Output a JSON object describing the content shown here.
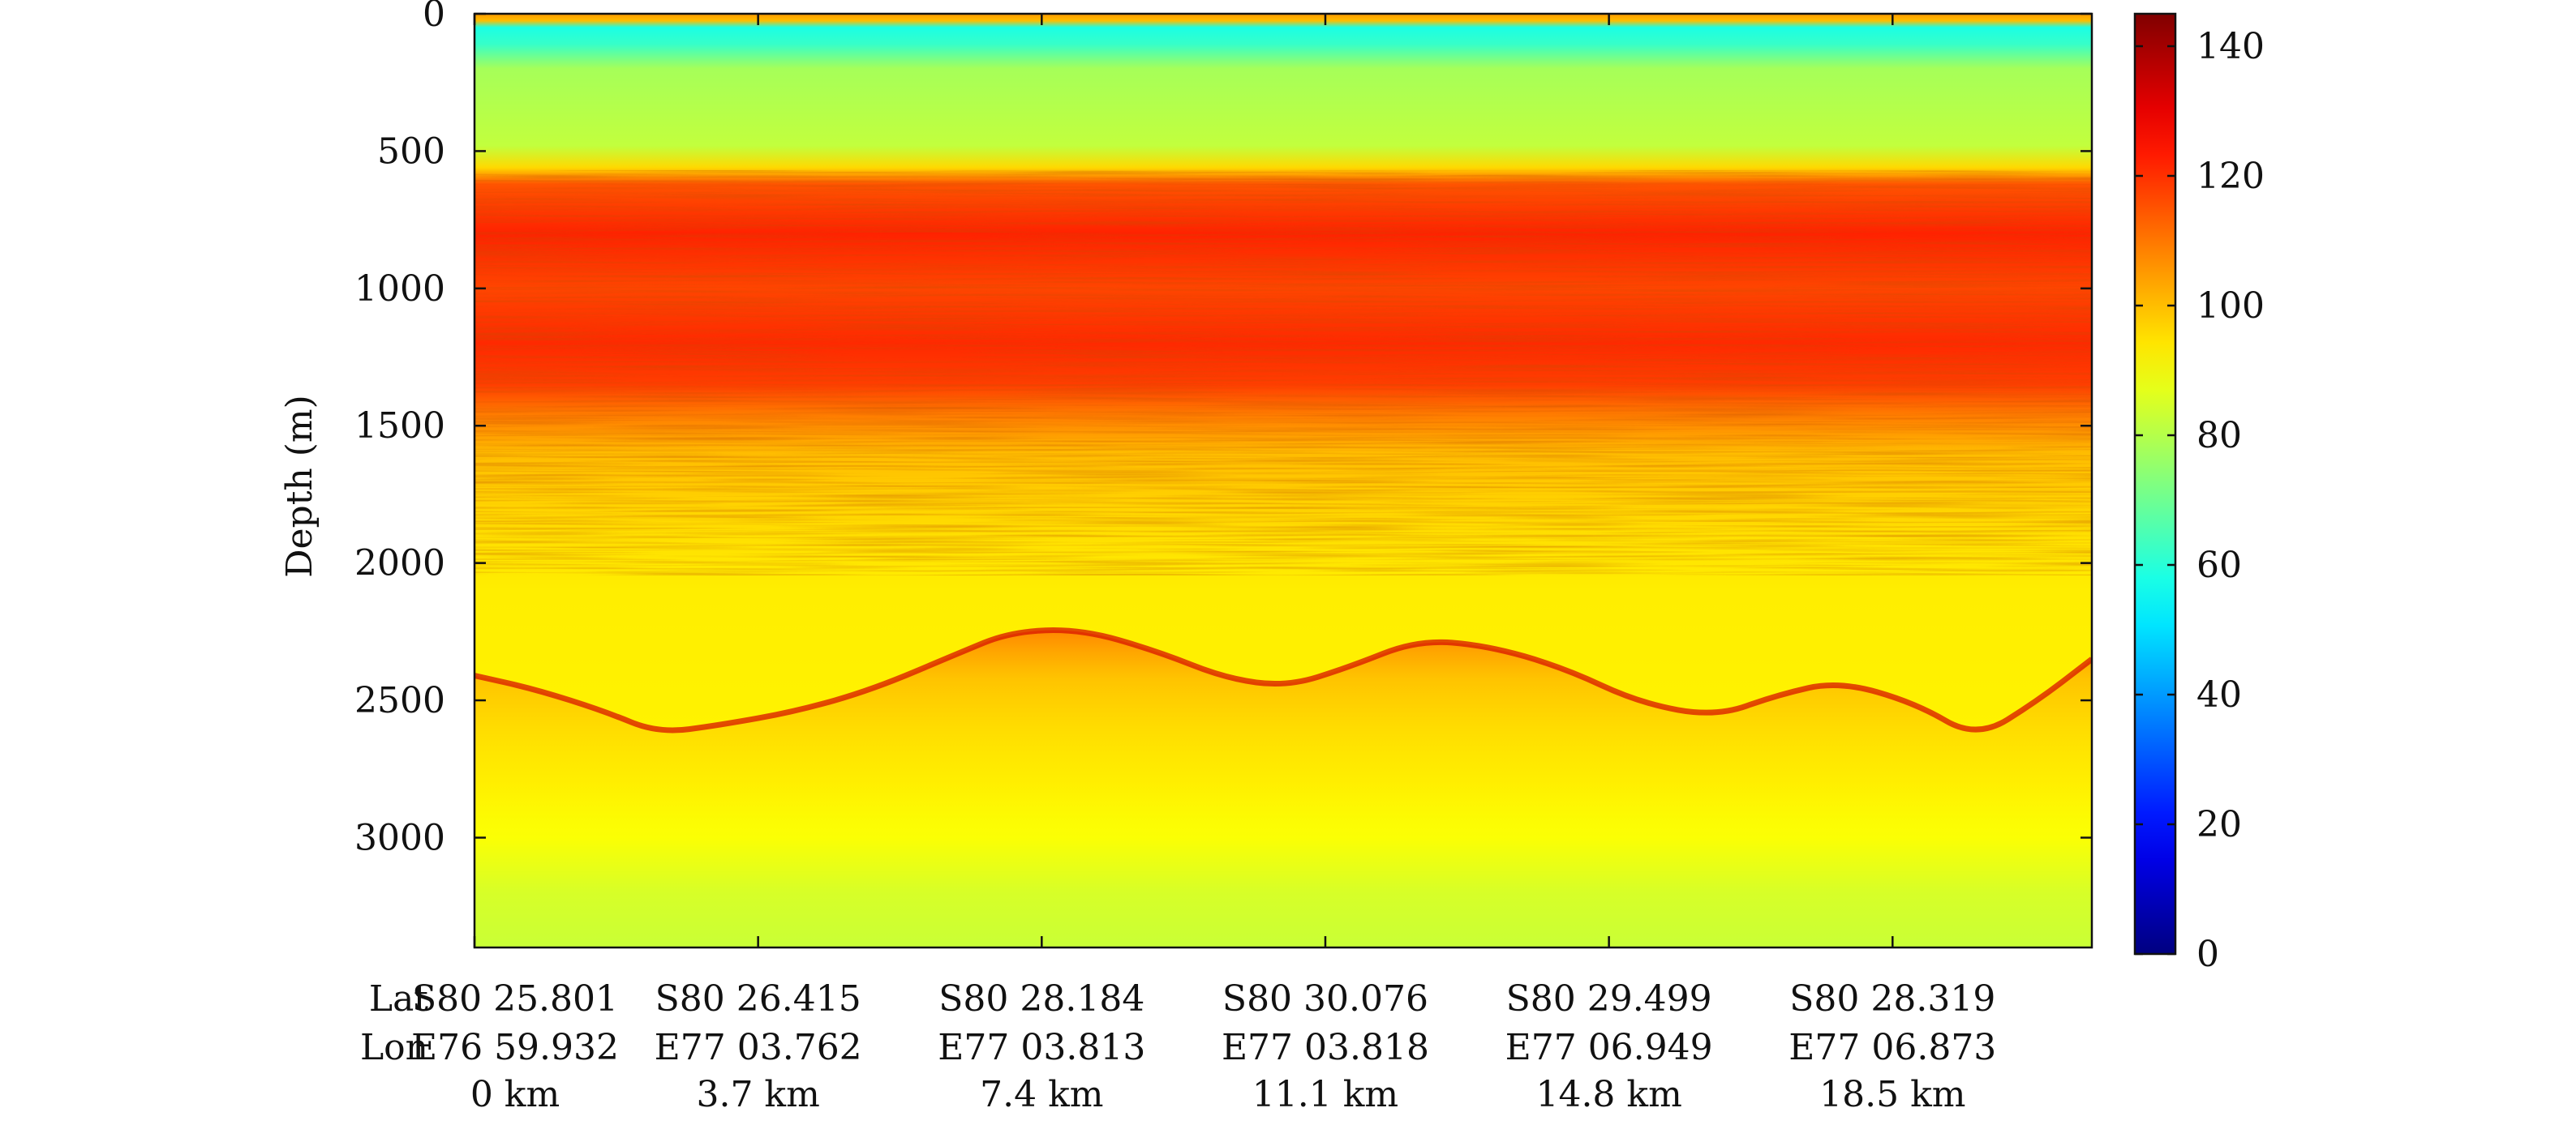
{
  "chart_data": {
    "type": "heatmap",
    "title": "",
    "ylabel": "Depth (m)",
    "xlabel": "",
    "y_range": [
      0,
      3400
    ],
    "y_inverted": true,
    "y_ticks": [
      0,
      500,
      1000,
      1500,
      2000,
      2500,
      3000
    ],
    "x_range_km": [
      0,
      21.1
    ],
    "x_positions_km": [
      0,
      3.7,
      7.4,
      11.1,
      14.8,
      18.5
    ],
    "x_row_labels": [
      "Lat",
      "Lon",
      ""
    ],
    "x_ticks": [
      {
        "lat": "S80 25.801",
        "lon": "E76 59.932",
        "dist": "0 km"
      },
      {
        "lat": "S80 26.415",
        "lon": "E77 03.762",
        "dist": "3.7 km"
      },
      {
        "lat": "S80 28.184",
        "lon": "E77 03.813",
        "dist": "7.4 km"
      },
      {
        "lat": "S80 30.076",
        "lon": "E77 03.818",
        "dist": "11.1 km"
      },
      {
        "lat": "S80 29.499",
        "lon": "E77 06.949",
        "dist": "14.8 km"
      },
      {
        "lat": "S80 28.319",
        "lon": "E77 06.873",
        "dist": "18.5 km"
      }
    ],
    "colorbar": {
      "range": [
        0,
        145
      ],
      "ticks": [
        0,
        20,
        40,
        60,
        80,
        100,
        120,
        140
      ],
      "colormap": "jet"
    },
    "depth_profile": [
      {
        "depth": 0,
        "value": 105
      },
      {
        "depth": 25,
        "value": 100
      },
      {
        "depth": 50,
        "value": 58
      },
      {
        "depth": 110,
        "value": 62
      },
      {
        "depth": 200,
        "value": 78
      },
      {
        "depth": 480,
        "value": 82
      },
      {
        "depth": 560,
        "value": 96
      },
      {
        "depth": 620,
        "value": 115
      },
      {
        "depth": 800,
        "value": 122
      },
      {
        "depth": 1000,
        "value": 117
      },
      {
        "depth": 1200,
        "value": 121
      },
      {
        "depth": 1350,
        "value": 118
      },
      {
        "depth": 1450,
        "value": 110
      },
      {
        "depth": 1600,
        "value": 100
      },
      {
        "depth": 1900,
        "value": 95
      },
      {
        "depth": 2100,
        "value": 93
      },
      {
        "depth": 2800,
        "value": 92
      },
      {
        "depth": 3000,
        "value": 90
      },
      {
        "depth": 3200,
        "value": 85
      },
      {
        "depth": 3400,
        "value": 83
      }
    ],
    "bed_reflector": [
      {
        "x_km": 0,
        "depth": 2410
      },
      {
        "x_km": 0.8,
        "depth": 2460
      },
      {
        "x_km": 1.7,
        "depth": 2540
      },
      {
        "x_km": 2.4,
        "depth": 2620
      },
      {
        "x_km": 3.2,
        "depth": 2590
      },
      {
        "x_km": 4.2,
        "depth": 2540
      },
      {
        "x_km": 5.2,
        "depth": 2460
      },
      {
        "x_km": 6.3,
        "depth": 2330
      },
      {
        "x_km": 7.0,
        "depth": 2250
      },
      {
        "x_km": 7.9,
        "depth": 2240
      },
      {
        "x_km": 8.9,
        "depth": 2320
      },
      {
        "x_km": 9.8,
        "depth": 2420
      },
      {
        "x_km": 10.6,
        "depth": 2450
      },
      {
        "x_km": 11.4,
        "depth": 2380
      },
      {
        "x_km": 12.3,
        "depth": 2280
      },
      {
        "x_km": 13.2,
        "depth": 2300
      },
      {
        "x_km": 14.2,
        "depth": 2380
      },
      {
        "x_km": 15.2,
        "depth": 2510
      },
      {
        "x_km": 16.2,
        "depth": 2560
      },
      {
        "x_km": 17.0,
        "depth": 2480
      },
      {
        "x_km": 17.8,
        "depth": 2430
      },
      {
        "x_km": 18.8,
        "depth": 2510
      },
      {
        "x_km": 19.6,
        "depth": 2640
      },
      {
        "x_km": 20.4,
        "depth": 2500
      },
      {
        "x_km": 21.1,
        "depth": 2350
      }
    ]
  }
}
